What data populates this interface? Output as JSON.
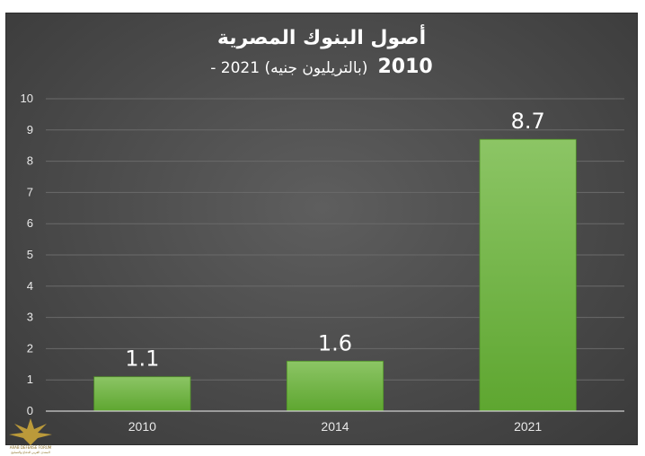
{
  "chart_data": {
    "type": "bar",
    "title": "أصول البنوك المصرية",
    "subtitle_years": "2010",
    "subtitle_rest": "- 2021 (بالتريليون جنيه)",
    "categories": [
      "2010",
      "2014",
      "2021"
    ],
    "values": [
      1.1,
      1.6,
      8.7
    ],
    "data_labels": [
      "1.1",
      "1.6",
      "8.7"
    ],
    "y_ticks": [
      0,
      1,
      2,
      3,
      4,
      5,
      6,
      7,
      8,
      9,
      10
    ],
    "ylim": [
      0,
      10
    ],
    "grid": true,
    "bar_color": "#6db33f",
    "background_color": "#4a4a4a"
  },
  "watermark": {
    "text_line1": "ARAB DEFENSE FORUM",
    "text_line2": "المنتدى العربي للدفاع والتسليح"
  }
}
